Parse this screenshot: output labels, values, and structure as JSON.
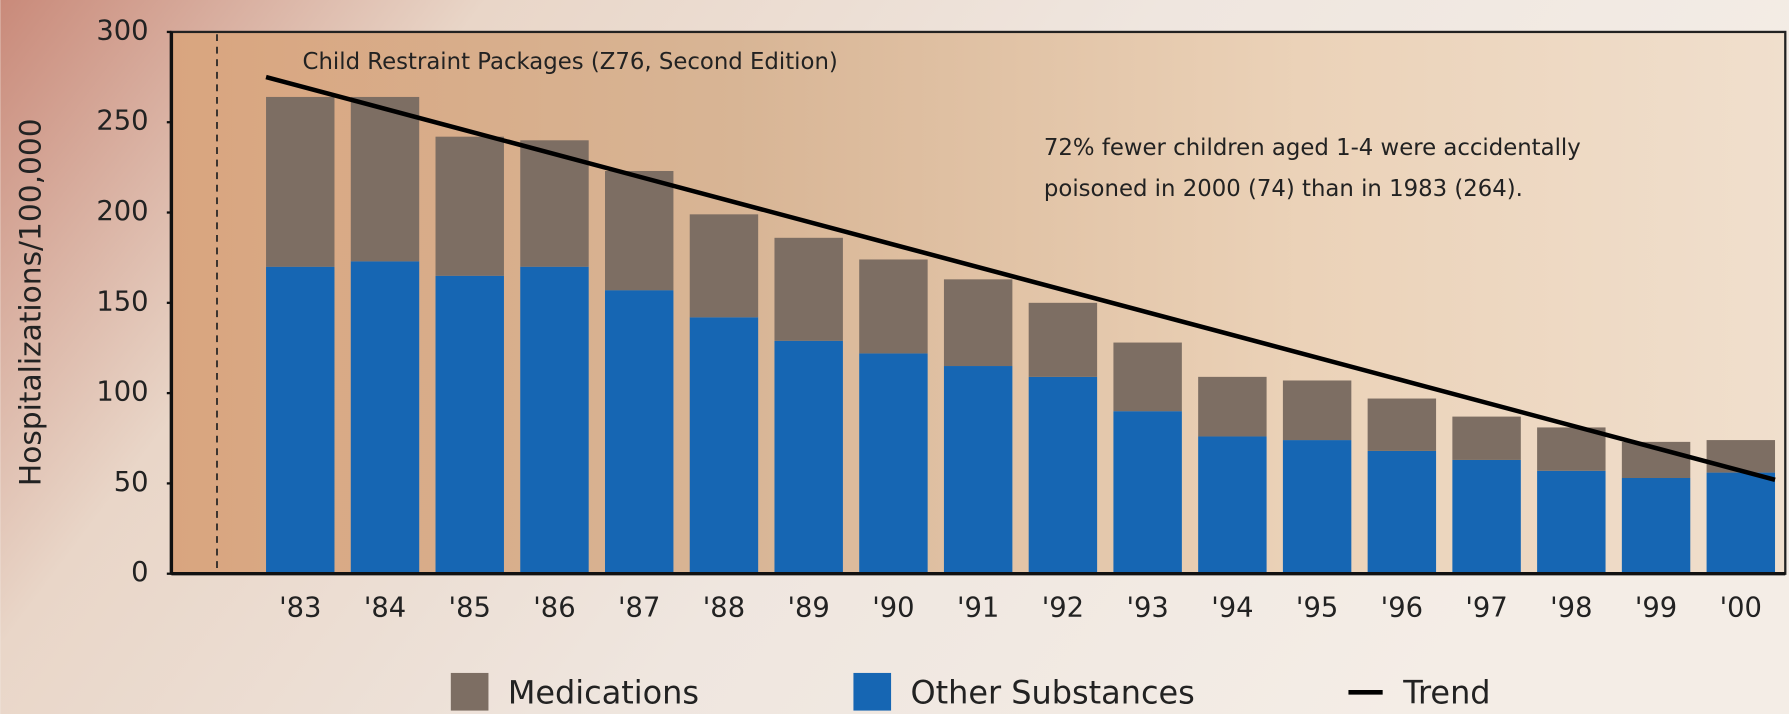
{
  "chart_data": {
    "type": "bar",
    "stacked": true,
    "y_label": "Hospitalizations/100,000",
    "categories": [
      "'83",
      "'84",
      "'85",
      "'86",
      "'87",
      "'88",
      "'89",
      "'90",
      "'91",
      "'92",
      "'93",
      "'94",
      "'95",
      "'96",
      "'97",
      "'98",
      "'99",
      "'00"
    ],
    "series": [
      {
        "name": "Other Substances",
        "color": "#1666b3",
        "values": [
          170,
          173,
          165,
          170,
          157,
          142,
          129,
          122,
          115,
          109,
          90,
          76,
          74,
          68,
          63,
          57,
          53,
          56
        ]
      },
      {
        "name": "Medications",
        "color": "#7d6e63",
        "values": [
          94,
          91,
          77,
          70,
          66,
          57,
          57,
          52,
          48,
          41,
          38,
          33,
          33,
          29,
          24,
          24,
          20,
          18
        ]
      }
    ],
    "trend": {
      "name": "Trend",
      "color": "#000000",
      "start": 275,
      "end": 52
    },
    "ylim": [
      0,
      300
    ],
    "yticks": [
      0,
      50,
      100,
      150,
      200,
      250,
      300
    ],
    "annotations": [
      "Child Restraint Packages (Z76, Second Edition)",
      "72% fewer children aged 1-4 were accidentally",
      "poisoned in 2000 (74) than in 1983 (264)."
    ]
  }
}
